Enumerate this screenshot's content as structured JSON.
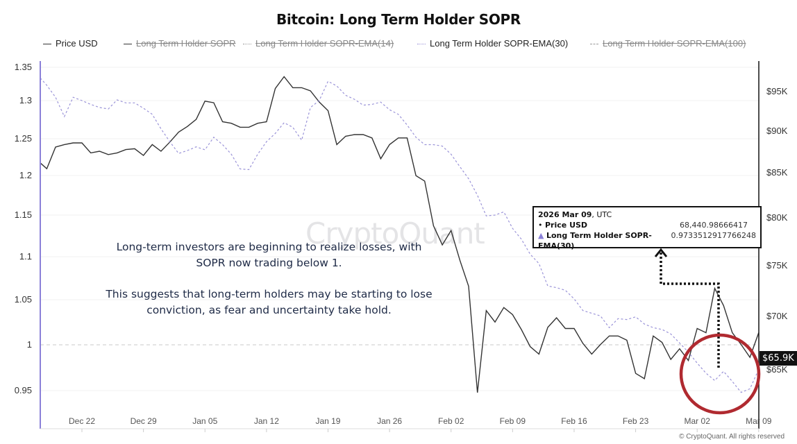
{
  "title": "Bitcoin: Long Term Holder SOPR",
  "legend": [
    {
      "label": "Price USD",
      "style": "solid",
      "color": "#333333",
      "visible": true
    },
    {
      "label": "Long Term Holder SOPR",
      "style": "solid",
      "color": "#333333",
      "visible": false
    },
    {
      "label": "Long Term Holder SOPR-EMA(14)",
      "style": "dotted",
      "color": "#999999",
      "visible": false
    },
    {
      "label": "Long Term Holder SOPR-EMA(30)",
      "style": "dashed",
      "color": "#9a93d8",
      "visible": true
    },
    {
      "label": "Long Term Holder SOPR-EMA(100)",
      "style": "dashed",
      "color": "#999999",
      "visible": false
    }
  ],
  "watermark": "CryptoQuant",
  "annotation": {
    "paragraph1": "Long-term investors are beginning to realize losses, with SOPR now trading below 1.",
    "paragraph2": "This suggests that long-term holders may be starting to lose conviction, as fear and uncertainty take hold."
  },
  "tooltip": {
    "date": "2026 Mar 09",
    "tz": ", UTC",
    "rows": [
      {
        "marker": "•",
        "label": "Price USD",
        "value": "68,440.98666417"
      },
      {
        "marker": "▲",
        "label": "Long Term Holder SOPR-EMA(30)",
        "value": "0.9733512917766248",
        "marker_color": "#8a80d8"
      }
    ]
  },
  "price_tag": "$65.9K",
  "copyright": "© CryptoQuant. All rights reserved",
  "highlight_color": "#b02a30",
  "chart_data": {
    "type": "line",
    "title": "Bitcoin: Long Term Holder SOPR",
    "x_tick_labels": [
      "Dec 22",
      "Dec 29",
      "Jan 05",
      "Jan 12",
      "Jan 19",
      "Jan 26",
      "Feb 02",
      "Feb 09",
      "Feb 16",
      "Feb 23",
      "Mar 02",
      "Mar 09"
    ],
    "left_axis": {
      "ticks": [
        1.35,
        1.3,
        1.25,
        1.2,
        1.15,
        1.1,
        1.05,
        1,
        0.95
      ],
      "tick_labels": [
        "1.35",
        "1.3",
        "1.25",
        "1.2",
        "1.15",
        "1.1",
        "1.05",
        "1",
        "0.95"
      ],
      "reference_line": 1
    },
    "right_axis": {
      "ticks": [
        95000,
        90000,
        85000,
        80000,
        75000,
        70000,
        65000
      ],
      "tick_labels": [
        "$95K",
        "$90K",
        "$85K",
        "$80K",
        "$75K",
        "$70K",
        "$65K"
      ]
    },
    "grid": true,
    "legend_position": "top",
    "x": [
      "2025-12-17",
      "2025-12-18",
      "2025-12-19",
      "2025-12-20",
      "2025-12-21",
      "2025-12-22",
      "2025-12-23",
      "2025-12-24",
      "2025-12-25",
      "2025-12-26",
      "2025-12-27",
      "2025-12-28",
      "2025-12-29",
      "2025-12-30",
      "2025-12-31",
      "2026-01-01",
      "2026-01-02",
      "2026-01-03",
      "2026-01-04",
      "2026-01-05",
      "2026-01-06",
      "2026-01-07",
      "2026-01-08",
      "2026-01-09",
      "2026-01-10",
      "2026-01-11",
      "2026-01-12",
      "2026-01-13",
      "2026-01-14",
      "2026-01-15",
      "2026-01-16",
      "2026-01-17",
      "2026-01-18",
      "2026-01-19",
      "2026-01-20",
      "2026-01-21",
      "2026-01-22",
      "2026-01-23",
      "2026-01-24",
      "2026-01-25",
      "2026-01-26",
      "2026-01-27",
      "2026-01-28",
      "2026-01-29",
      "2026-01-30",
      "2026-01-31",
      "2026-02-01",
      "2026-02-02",
      "2026-02-03",
      "2026-02-04",
      "2026-02-05",
      "2026-02-06",
      "2026-02-07",
      "2026-02-08",
      "2026-02-09",
      "2026-02-10",
      "2026-02-11",
      "2026-02-12",
      "2026-02-13",
      "2026-02-14",
      "2026-02-15",
      "2026-02-16",
      "2026-02-17",
      "2026-02-18",
      "2026-02-19",
      "2026-02-20",
      "2026-02-21",
      "2026-02-22",
      "2026-02-23",
      "2026-02-24",
      "2026-02-25",
      "2026-02-26",
      "2026-02-27",
      "2026-02-28",
      "2026-03-01",
      "2026-03-02",
      "2026-03-03",
      "2026-03-04",
      "2026-03-05",
      "2026-03-06",
      "2026-03-07",
      "2026-03-08",
      "2026-03-09"
    ],
    "series": [
      {
        "name": "Price USD",
        "axis": "right",
        "color": "#333333",
        "values": [
          86100,
          85400,
          88000,
          88300,
          88500,
          88500,
          87300,
          87500,
          87100,
          87300,
          87700,
          87800,
          87000,
          88300,
          87500,
          88600,
          89800,
          90500,
          91400,
          93700,
          93500,
          91100,
          90900,
          90400,
          90400,
          90900,
          91100,
          95300,
          96800,
          95400,
          95400,
          95000,
          93600,
          92500,
          88300,
          89300,
          89500,
          89500,
          89100,
          86600,
          88300,
          89100,
          89100,
          84600,
          84000,
          79100,
          77100,
          78600,
          75500,
          72900,
          62800,
          70500,
          69400,
          70800,
          70100,
          68700,
          67100,
          66400,
          68900,
          69800,
          68800,
          68800,
          67400,
          66400,
          67300,
          68100,
          68100,
          67700,
          64600,
          64100,
          68100,
          67500,
          65900,
          66900,
          65800,
          68800,
          68400,
          72700,
          71000,
          68400,
          67300,
          66100,
          68400
        ]
      },
      {
        "name": "Long Term Holder SOPR-EMA(30)",
        "axis": "left",
        "color": "#9a93d8",
        "values": [
          1.334,
          1.323,
          1.305,
          1.279,
          1.305,
          1.3,
          1.295,
          1.291,
          1.289,
          1.301,
          1.297,
          1.297,
          1.29,
          1.282,
          1.263,
          1.246,
          1.23,
          1.234,
          1.239,
          1.235,
          1.252,
          1.242,
          1.229,
          1.209,
          1.208,
          1.229,
          1.246,
          1.257,
          1.271,
          1.265,
          1.248,
          1.291,
          1.3,
          1.329,
          1.322,
          1.308,
          1.302,
          1.294,
          1.295,
          1.298,
          1.288,
          1.282,
          1.268,
          1.252,
          1.242,
          1.242,
          1.24,
          1.229,
          1.212,
          1.196,
          1.175,
          1.149,
          1.15,
          1.154,
          1.134,
          1.121,
          1.103,
          1.092,
          1.066,
          1.064,
          1.061,
          1.051,
          1.038,
          1.035,
          1.032,
          1.019,
          1.029,
          1.028,
          1.031,
          1.023,
          1.019,
          1.017,
          1.012,
          1.002,
          0.992,
          0.98,
          0.969,
          0.961,
          0.971,
          0.96,
          0.948,
          0.952,
          0.973
        ]
      }
    ]
  }
}
